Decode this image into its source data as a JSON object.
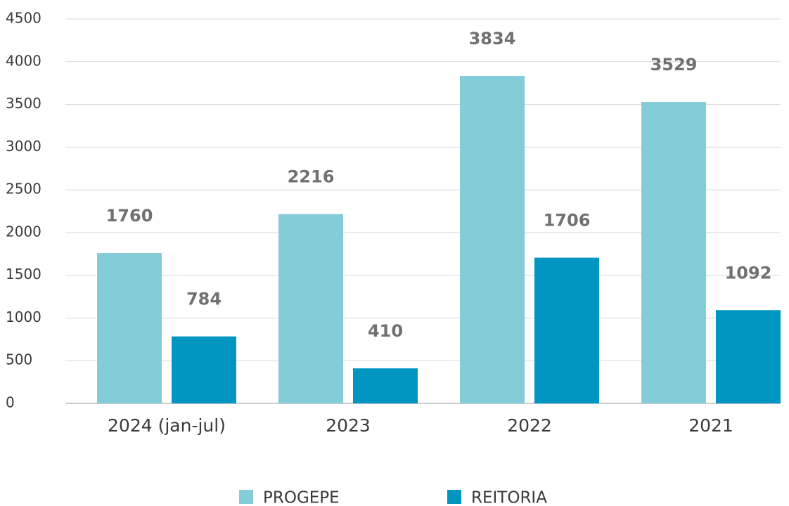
{
  "chart_data": {
    "type": "bar",
    "categories": [
      "2024 (jan-jul)",
      "2023",
      "2022",
      "2021"
    ],
    "series": [
      {
        "name": "PROGEPE",
        "color": "#85ccd9",
        "values": [
          1760,
          2216,
          3834,
          3529
        ]
      },
      {
        "name": "REITORIA",
        "color": "#0096c1",
        "values": [
          784,
          410,
          1706,
          1092
        ]
      }
    ],
    "ylim": [
      0,
      4500
    ],
    "yticks": [
      0,
      500,
      1000,
      1500,
      2000,
      2500,
      3000,
      3500,
      4000,
      4500
    ],
    "grid": true,
    "legend": "bottom"
  }
}
